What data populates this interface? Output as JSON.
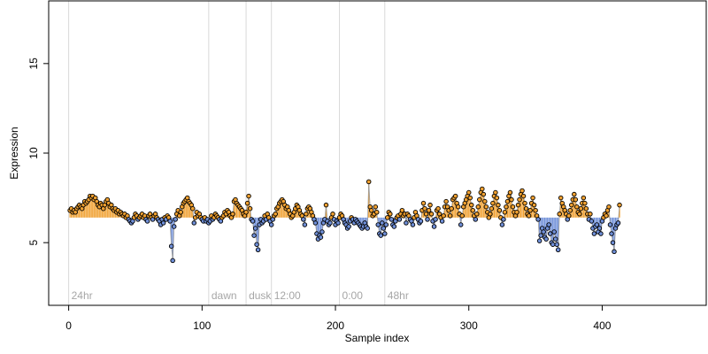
{
  "chart_data": {
    "type": "line",
    "title": "",
    "xlabel": "Sample index",
    "ylabel": "Expression",
    "xlim": [
      -15,
      478
    ],
    "ylim": [
      1.5,
      18.5
    ],
    "x_ticks": [
      0,
      100,
      200,
      300,
      400
    ],
    "y_ticks": [
      5,
      10,
      15
    ],
    "grid": false,
    "baseline": 6.4,
    "colors": {
      "above": "#f0a030",
      "below": "#6f8fd8",
      "trend": "#9a9a9a",
      "point_stroke": "#000000",
      "vline": "#d9d9d9",
      "marker_text": "#a6a6a6"
    },
    "time_markers": [
      {
        "label": "24hr",
        "x": 0,
        "text_x": 2
      },
      {
        "label": "dawn",
        "x": 105,
        "text_x": 107
      },
      {
        "label": "dusk",
        "x": 133,
        "text_x": 135
      },
      {
        "label": "12:00",
        "x": 152,
        "text_x": 154
      },
      {
        "label": "0:00",
        "x": 203,
        "text_x": 205
      },
      {
        "label": "48hr",
        "x": 237,
        "text_x": 239
      }
    ],
    "series": [
      {
        "x_start": 1,
        "values": [
          6.8,
          6.9,
          6.7,
          6.8,
          6.7,
          6.9,
          7.0,
          7.1,
          7.0,
          6.9,
          7.1,
          7.3,
          7.2,
          7.3,
          7.4,
          7.6,
          7.5,
          7.6,
          7.4,
          7.5,
          7.3,
          7.1,
          7.0,
          7.2,
          7.1,
          6.9,
          7.1,
          7.3,
          7.4,
          7.2,
          7.0,
          7.1,
          6.9,
          6.8,
          6.9,
          6.7,
          6.8,
          6.6,
          6.7,
          6.6,
          6.5,
          6.6,
          6.4,
          6.5,
          6.3,
          6.2,
          6.1,
          6.2,
          6.4,
          6.6,
          6.5,
          6.3,
          6.4,
          6.5,
          6.6,
          6.4,
          6.5,
          6.3,
          6.2,
          6.5,
          6.6,
          6.4,
          6.3,
          6.5,
          6.6,
          6.4,
          6.3,
          6.2,
          6.0,
          6.3,
          6.1,
          6.4,
          6.3,
          6.5,
          6.4,
          6.2,
          4.8,
          4.0,
          5.9,
          6.3,
          6.6,
          6.8,
          6.5,
          6.7,
          7.0,
          7.2,
          7.3,
          7.4,
          7.5,
          7.3,
          7.2,
          7.1,
          6.9,
          6.1,
          6.4,
          6.7,
          6.5,
          6.6,
          6.4,
          6.3,
          6.2,
          6.4,
          6.2,
          6.3,
          6.1,
          6.2,
          6.5,
          6.3,
          6.4,
          6.6,
          6.5,
          6.4,
          6.3,
          6.2,
          6.4,
          6.5,
          6.7,
          6.6,
          6.8,
          6.7,
          6.5,
          6.4,
          6.6,
          7.3,
          7.4,
          7.2,
          7.1,
          7.0,
          6.9,
          6.8,
          6.6,
          6.5,
          6.7,
          7.2,
          7.6,
          6.9,
          6.3,
          6.2,
          5.4,
          5.8,
          4.9,
          4.6,
          6.0,
          6.3,
          6.1,
          6.2,
          6.5,
          6.3,
          6.6,
          6.4,
          6.2,
          6.0,
          6.3,
          6.5,
          6.6,
          6.9,
          7.0,
          7.2,
          7.3,
          7.4,
          7.3,
          7.1,
          6.9,
          7.0,
          6.8,
          6.6,
          6.4,
          6.5,
          6.7,
          6.9,
          7.1,
          7.0,
          6.8,
          6.6,
          6.5,
          6.3,
          6.0,
          6.6,
          6.9,
          7.0,
          6.9,
          6.7,
          6.5,
          6.3,
          6.1,
          5.5,
          5.2,
          5.4,
          5.3,
          5.6,
          6.1,
          6.3,
          7.1,
          6.2,
          6.0,
          6.1,
          6.4,
          6.6,
          6.3,
          6.0,
          6.2,
          6.1,
          6.4,
          6.6,
          6.5,
          6.3,
          6.1,
          6.0,
          5.8,
          5.9,
          6.2,
          6.4,
          6.3,
          6.1,
          6.3,
          6.2,
          6.1,
          6.0,
          5.9,
          5.8,
          5.9,
          6.1,
          5.9,
          5.8,
          8.4,
          7.0,
          6.8,
          6.5,
          6.6,
          7.0,
          6.7,
          6.0,
          5.5,
          5.4,
          6.1,
          5.8,
          5.5,
          6.0,
          6.4,
          6.7,
          6.6,
          6.3,
          6.0,
          5.9,
          6.2,
          6.4,
          6.5,
          6.3,
          6.6,
          6.8,
          6.5,
          6.6,
          6.1,
          6.6,
          6.5,
          6.3,
          6.2,
          6.0,
          6.4,
          6.7,
          6.5,
          6.3,
          6.1,
          6.2,
          6.8,
          7.2,
          6.9,
          6.6,
          6.3,
          6.8,
          7.1,
          6.6,
          6.2,
          5.9,
          6.3,
          6.8,
          6.9,
          6.6,
          6.4,
          6.2,
          6.5,
          7.0,
          7.3,
          7.0,
          6.8,
          6.5,
          6.9,
          7.4,
          7.5,
          7.6,
          7.2,
          7.0,
          6.6,
          6.0,
          6.5,
          7.0,
          7.2,
          7.4,
          7.6,
          7.8,
          7.5,
          7.1,
          6.8,
          6.5,
          6.3,
          6.6,
          7.0,
          7.4,
          7.8,
          8.0,
          7.7,
          7.3,
          7.0,
          6.7,
          6.4,
          6.6,
          6.9,
          7.2,
          7.6,
          7.8,
          7.5,
          7.1,
          6.8,
          6.4,
          6.0,
          6.3,
          6.7,
          7.0,
          7.3,
          7.6,
          7.8,
          7.4,
          7.0,
          6.7,
          6.5,
          6.7,
          7.1,
          7.4,
          7.7,
          7.9,
          7.6,
          7.2,
          6.9,
          6.6,
          6.5,
          6.8,
          7.2,
          7.5,
          7.1,
          6.8,
          6.5,
          6.3,
          5.1,
          5.4,
          5.8,
          5.6,
          5.3,
          5.2,
          5.8,
          6.0,
          5.5,
          5.0,
          4.9,
          5.6,
          5.2,
          4.9,
          4.6,
          6.6,
          7.5,
          7.2,
          7.0,
          6.8,
          6.6,
          6.3,
          6.5,
          6.8,
          7.1,
          7.4,
          7.7,
          7.4,
          7.0,
          6.7,
          6.6,
          6.9,
          7.2,
          7.5,
          7.2,
          6.9,
          6.6,
          6.3,
          6.6,
          6.2,
          5.8,
          5.5,
          5.9,
          6.0,
          5.6,
          5.8,
          5.5,
          6.2,
          6.4,
          6.6,
          6.5,
          6.8,
          7.0,
          6.0,
          5.5,
          5.0,
          4.5,
          5.8,
          6.0,
          6.1,
          7.1
        ]
      }
    ]
  }
}
